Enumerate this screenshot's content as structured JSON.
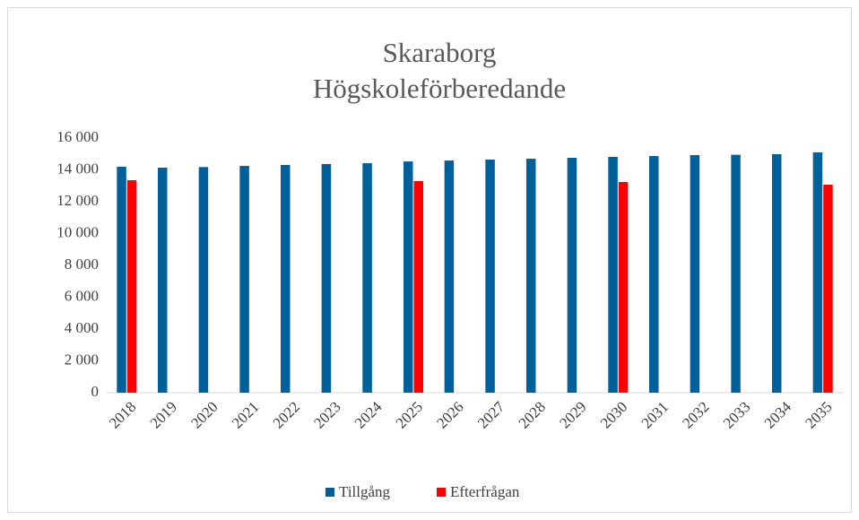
{
  "chart_data": {
    "type": "bar",
    "title": "Skaraborg",
    "subtitle": "Högskoleförberedande",
    "categories": [
      "2018",
      "2019",
      "2020",
      "2021",
      "2022",
      "2023",
      "2024",
      "2025",
      "2026",
      "2027",
      "2028",
      "2029",
      "2030",
      "2031",
      "2032",
      "2033",
      "2034",
      "2035"
    ],
    "series": [
      {
        "name": "Tillgång",
        "color": "#006099",
        "values": [
          14200,
          14140,
          14180,
          14250,
          14310,
          14370,
          14420,
          14530,
          14590,
          14650,
          14700,
          14760,
          14820,
          14870,
          14930,
          14950,
          14990,
          15100
        ]
      },
      {
        "name": "Efterfrågan",
        "color": "#ff0000",
        "values": [
          13350,
          null,
          null,
          null,
          null,
          null,
          null,
          13300,
          null,
          null,
          null,
          null,
          13240,
          null,
          null,
          null,
          null,
          13070
        ]
      }
    ],
    "ylim": [
      0,
      16000
    ],
    "yticks": [
      0,
      {
        "value": 2000,
        "label": "2 000"
      },
      {
        "value": 4000,
        "label": "4 000"
      },
      {
        "value": 6000,
        "label": "6 000"
      },
      {
        "value": 8000,
        "label": "8 000"
      },
      {
        "value": 10000,
        "label": "10 000"
      },
      {
        "value": 12000,
        "label": "12 000"
      },
      {
        "value": 14000,
        "label": "14 000"
      },
      {
        "value": 16000,
        "label": "16 000"
      }
    ],
    "grid": false,
    "legend": "bottom"
  }
}
